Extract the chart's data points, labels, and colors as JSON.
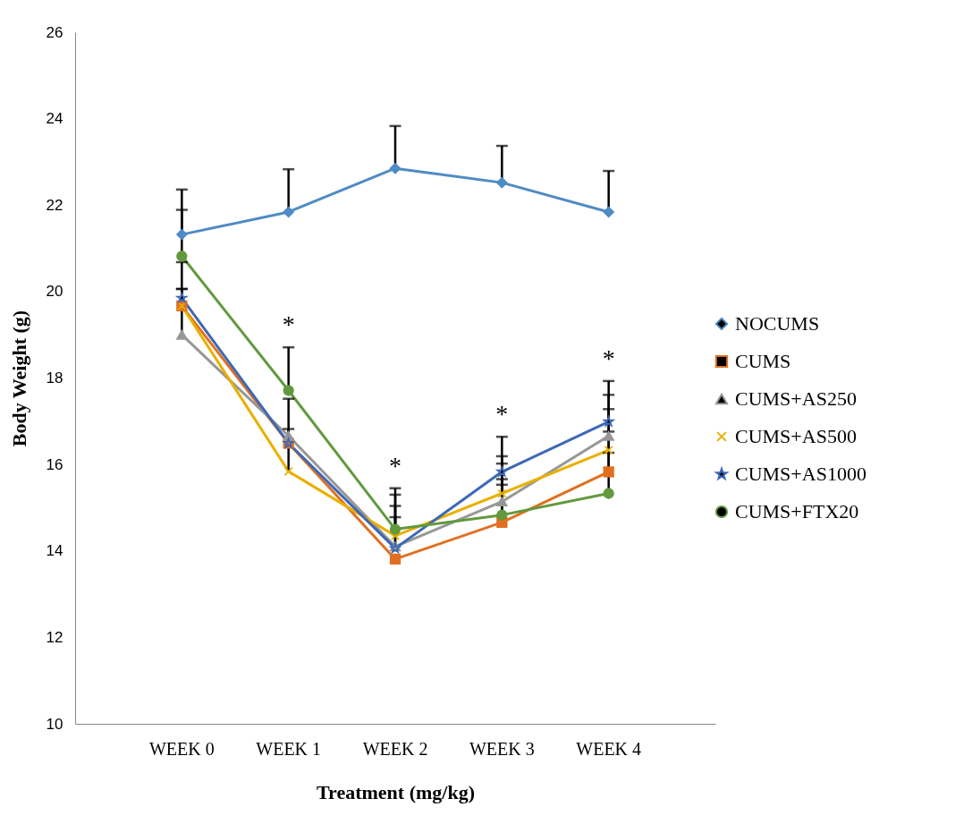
{
  "chart_data": {
    "type": "line",
    "xlabel": "Treatment (mg/kg)",
    "ylabel": "Body Weight (g)",
    "categories": [
      "WEEK 0",
      "WEEK 1",
      "WEEK 2",
      "WEEK 3",
      "WEEK 4"
    ],
    "series": [
      {
        "name": "NOCUMS",
        "color": "#4f8bc4",
        "marker": "diamond",
        "values": [
          21.32,
          21.84,
          22.85,
          22.52,
          21.84
        ],
        "errors": [
          [
            21.32,
            22.36
          ],
          [
            21.84,
            22.83
          ],
          [
            22.85,
            23.83
          ],
          [
            22.52,
            23.37
          ],
          [
            21.84,
            22.79
          ]
        ]
      },
      {
        "name": "CUMS",
        "color": "#e07020",
        "marker": "square",
        "values": [
          19.67,
          16.49,
          13.81,
          14.66,
          15.83
        ],
        "errors": [
          [
            19.67,
            20.06
          ],
          null,
          null,
          [
            14.66,
            15.53
          ],
          [
            15.83,
            16.76
          ]
        ]
      },
      {
        "name": "CUMS+AS250",
        "color": "#979797",
        "marker": "triangle",
        "values": [
          19.0,
          16.66,
          14.1,
          15.14,
          16.66
        ],
        "errors": [
          [
            19.0,
            20.06
          ],
          null,
          [
            14.1,
            14.78
          ],
          [
            15.14,
            16.02
          ],
          [
            16.66,
            17.61
          ]
        ]
      },
      {
        "name": "CUMS+AS500",
        "color": "#e9b000",
        "marker": "cross",
        "values": [
          19.67,
          15.84,
          14.35,
          15.33,
          16.33
        ],
        "errors": [
          null,
          [
            15.84,
            16.82
          ],
          [
            14.35,
            15.3
          ],
          [
            15.33,
            16.19
          ],
          [
            16.33,
            17.28
          ]
        ]
      },
      {
        "name": "CUMS+AS1000",
        "color": "#3d68b8",
        "marker": "star",
        "values": [
          19.85,
          16.49,
          14.06,
          15.83,
          16.99
        ],
        "errors": [
          [
            19.85,
            20.68
          ],
          [
            16.49,
            17.52
          ],
          [
            14.06,
            15.04
          ],
          [
            15.83,
            16.64
          ],
          [
            16.99,
            17.93
          ]
        ]
      },
      {
        "name": "CUMS+FTX20",
        "color": "#62993e",
        "marker": "circle",
        "values": [
          20.82,
          17.71,
          14.5,
          14.83,
          15.33
        ],
        "errors": [
          [
            20.82,
            21.89
          ],
          [
            17.71,
            18.71
          ],
          [
            14.5,
            15.45
          ],
          [
            14.83,
            15.66
          ],
          [
            15.33,
            16.27
          ]
        ]
      }
    ],
    "annotations": [
      "*",
      "*",
      "*",
      "*"
    ],
    "ylim": [
      10,
      26
    ],
    "yticks": [
      10,
      12,
      14,
      16,
      18,
      20,
      22,
      24,
      26
    ],
    "grid": false,
    "legend": "right",
    "line_style": "solid"
  }
}
